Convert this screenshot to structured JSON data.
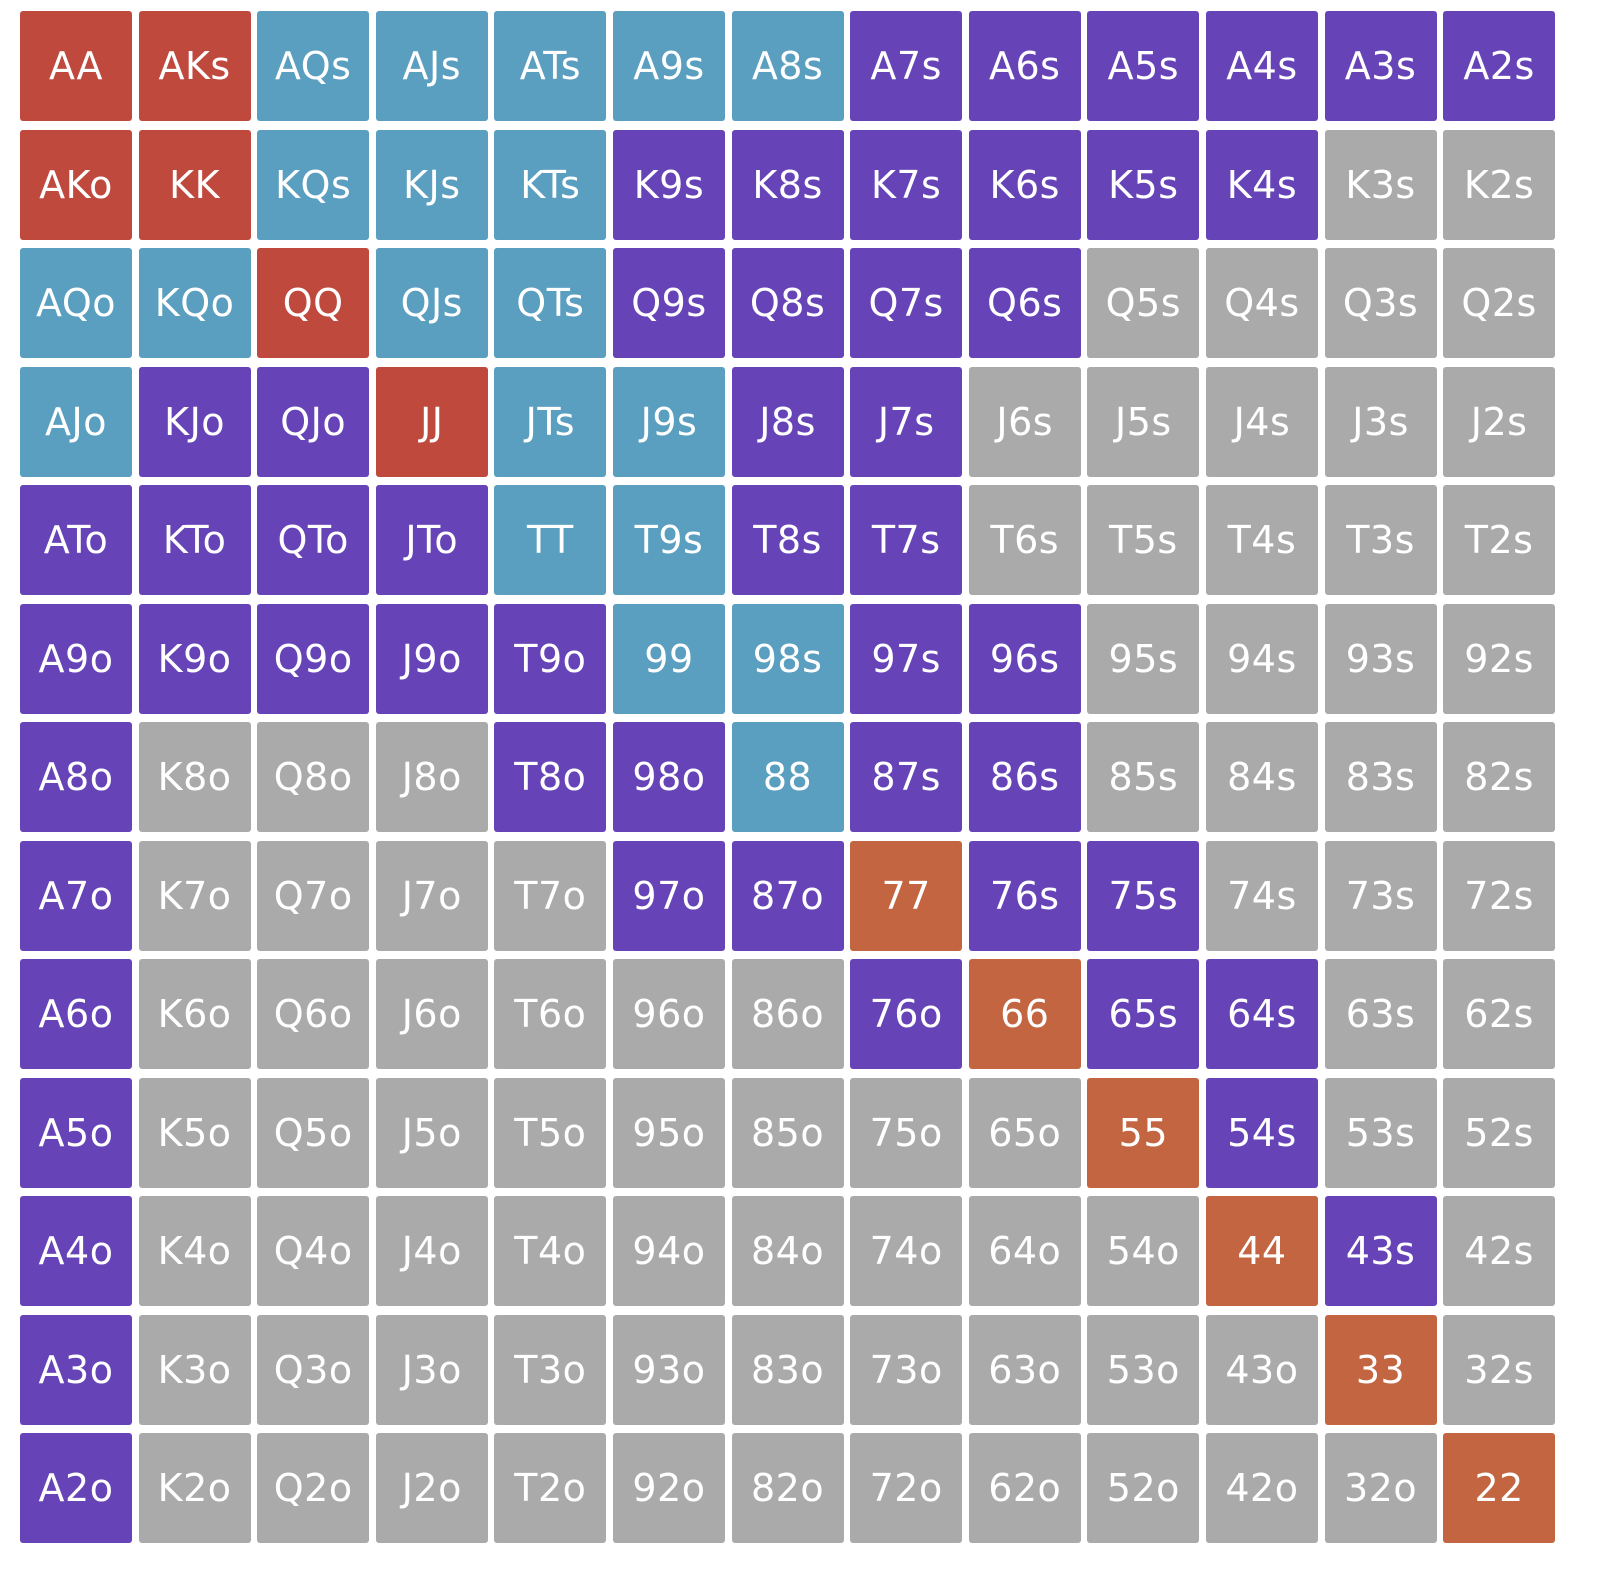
{
  "colors": {
    "r": "#C0493E",
    "b": "#5A9EC0",
    "p": "#6644B8",
    "g": "#AAAAAA",
    "o": "#C26540"
  },
  "rows": [
    {
      "hands": [
        "AA",
        "AKs",
        "AQs",
        "AJs",
        "ATs",
        "A9s",
        "A8s",
        "A7s",
        "A6s",
        "A5s",
        "A4s",
        "A3s",
        "A2s"
      ],
      "cats": [
        "r",
        "r",
        "b",
        "b",
        "b",
        "b",
        "b",
        "p",
        "p",
        "p",
        "p",
        "p",
        "p"
      ]
    },
    {
      "hands": [
        "AKo",
        "KK",
        "KQs",
        "KJs",
        "KTs",
        "K9s",
        "K8s",
        "K7s",
        "K6s",
        "K5s",
        "K4s",
        "K3s",
        "K2s"
      ],
      "cats": [
        "r",
        "r",
        "b",
        "b",
        "b",
        "p",
        "p",
        "p",
        "p",
        "p",
        "p",
        "g",
        "g"
      ]
    },
    {
      "hands": [
        "AQo",
        "KQo",
        "QQ",
        "QJs",
        "QTs",
        "Q9s",
        "Q8s",
        "Q7s",
        "Q6s",
        "Q5s",
        "Q4s",
        "Q3s",
        "Q2s"
      ],
      "cats": [
        "b",
        "b",
        "r",
        "b",
        "b",
        "p",
        "p",
        "p",
        "p",
        "g",
        "g",
        "g",
        "g"
      ]
    },
    {
      "hands": [
        "AJo",
        "KJo",
        "QJo",
        "JJ",
        "JTs",
        "J9s",
        "J8s",
        "J7s",
        "J6s",
        "J5s",
        "J4s",
        "J3s",
        "J2s"
      ],
      "cats": [
        "b",
        "p",
        "p",
        "r",
        "b",
        "b",
        "p",
        "p",
        "g",
        "g",
        "g",
        "g",
        "g"
      ]
    },
    {
      "hands": [
        "ATo",
        "KTo",
        "QTo",
        "JTo",
        "TT",
        "T9s",
        "T8s",
        "T7s",
        "T6s",
        "T5s",
        "T4s",
        "T3s",
        "T2s"
      ],
      "cats": [
        "p",
        "p",
        "p",
        "p",
        "b",
        "b",
        "p",
        "p",
        "g",
        "g",
        "g",
        "g",
        "g"
      ]
    },
    {
      "hands": [
        "A9o",
        "K9o",
        "Q9o",
        "J9o",
        "T9o",
        "99",
        "98s",
        "97s",
        "96s",
        "95s",
        "94s",
        "93s",
        "92s"
      ],
      "cats": [
        "p",
        "p",
        "p",
        "p",
        "p",
        "b",
        "b",
        "p",
        "p",
        "g",
        "g",
        "g",
        "g"
      ]
    },
    {
      "hands": [
        "A8o",
        "K8o",
        "Q8o",
        "J8o",
        "T8o",
        "98o",
        "88",
        "87s",
        "86s",
        "85s",
        "84s",
        "83s",
        "82s"
      ],
      "cats": [
        "p",
        "g",
        "g",
        "g",
        "p",
        "p",
        "b",
        "p",
        "p",
        "g",
        "g",
        "g",
        "g"
      ]
    },
    {
      "hands": [
        "A7o",
        "K7o",
        "Q7o",
        "J7o",
        "T7o",
        "97o",
        "87o",
        "77",
        "76s",
        "75s",
        "74s",
        "73s",
        "72s"
      ],
      "cats": [
        "p",
        "g",
        "g",
        "g",
        "g",
        "p",
        "p",
        "o",
        "p",
        "p",
        "g",
        "g",
        "g"
      ]
    },
    {
      "hands": [
        "A6o",
        "K6o",
        "Q6o",
        "J6o",
        "T6o",
        "96o",
        "86o",
        "76o",
        "66",
        "65s",
        "64s",
        "63s",
        "62s"
      ],
      "cats": [
        "p",
        "g",
        "g",
        "g",
        "g",
        "g",
        "g",
        "p",
        "o",
        "p",
        "p",
        "g",
        "g"
      ]
    },
    {
      "hands": [
        "A5o",
        "K5o",
        "Q5o",
        "J5o",
        "T5o",
        "95o",
        "85o",
        "75o",
        "65o",
        "55",
        "54s",
        "53s",
        "52s"
      ],
      "cats": [
        "p",
        "g",
        "g",
        "g",
        "g",
        "g",
        "g",
        "g",
        "g",
        "o",
        "p",
        "g",
        "g"
      ]
    },
    {
      "hands": [
        "A4o",
        "K4o",
        "Q4o",
        "J4o",
        "T4o",
        "94o",
        "84o",
        "74o",
        "64o",
        "54o",
        "44",
        "43s",
        "42s"
      ],
      "cats": [
        "p",
        "g",
        "g",
        "g",
        "g",
        "g",
        "g",
        "g",
        "g",
        "g",
        "o",
        "p",
        "g"
      ]
    },
    {
      "hands": [
        "A3o",
        "K3o",
        "Q3o",
        "J3o",
        "T3o",
        "93o",
        "83o",
        "73o",
        "63o",
        "53o",
        "43o",
        "33",
        "32s"
      ],
      "cats": [
        "p",
        "g",
        "g",
        "g",
        "g",
        "g",
        "g",
        "g",
        "g",
        "g",
        "g",
        "o",
        "g"
      ]
    },
    {
      "hands": [
        "A2o",
        "K2o",
        "Q2o",
        "J2o",
        "T2o",
        "92o",
        "82o",
        "72o",
        "62o",
        "52o",
        "42o",
        "32o",
        "22"
      ],
      "cats": [
        "p",
        "g",
        "g",
        "g",
        "g",
        "g",
        "g",
        "g",
        "g",
        "g",
        "g",
        "g",
        "o"
      ]
    }
  ]
}
